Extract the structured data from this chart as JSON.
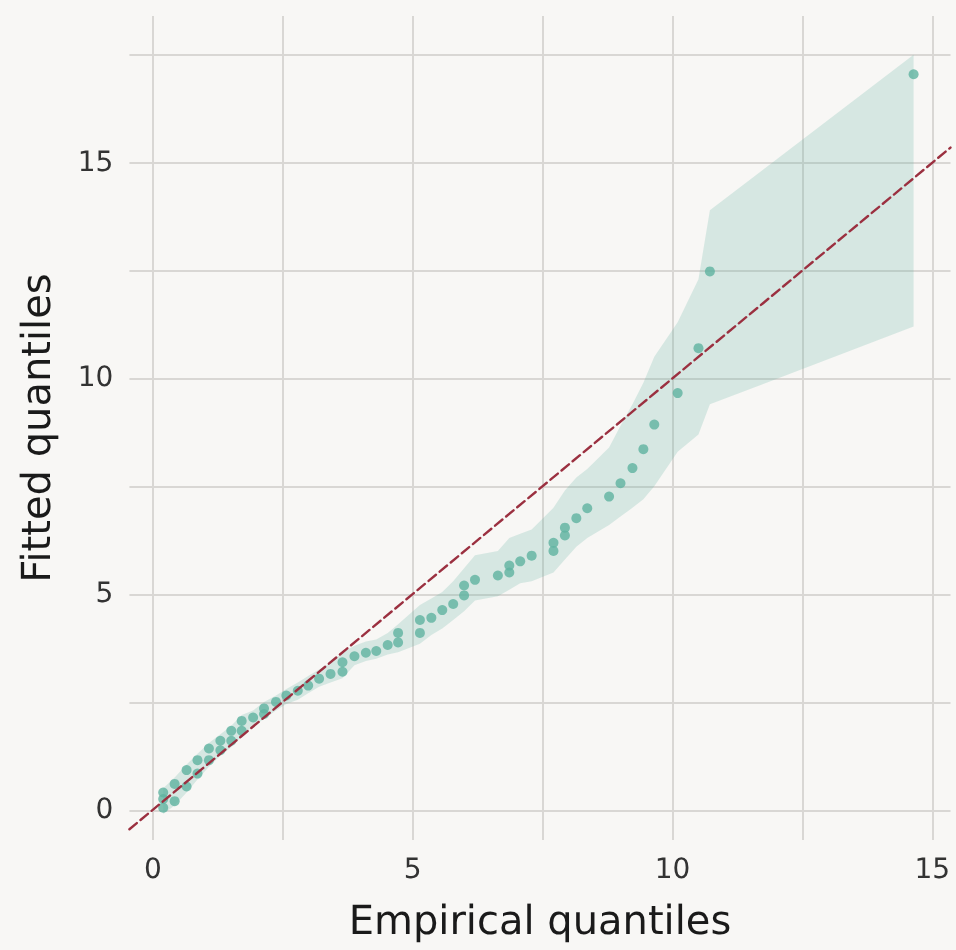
{
  "chart_data": {
    "type": "scatter",
    "xlabel": "Empirical quantiles",
    "ylabel": "Fitted quantiles",
    "xlim": [
      -0.45,
      15.35
    ],
    "ylim": [
      -0.7,
      18.4
    ],
    "xticks": [
      0,
      {
        "value": 2.5,
        "label": null
      },
      5,
      {
        "value": 7.5,
        "label": null
      },
      10,
      {
        "value": 12.5,
        "label": null
      },
      15
    ],
    "yticks": [
      0,
      {
        "value": 2.5,
        "label": null
      },
      5,
      {
        "value": 7.5,
        "label": null
      },
      10,
      {
        "value": 12.5,
        "label": null
      },
      15,
      {
        "value": 17.5,
        "label": null
      }
    ],
    "grid": true,
    "marker": "circle",
    "series": [
      {
        "color": "#5fb3a0",
        "x": [
          0.2,
          0.2,
          0.2,
          0.42,
          0.42,
          0.65,
          0.65,
          0.86,
          0.86,
          1.08,
          1.08,
          1.3,
          1.3,
          1.51,
          1.51,
          1.71,
          1.71,
          1.93,
          2.14,
          2.14,
          2.37,
          2.57,
          2.79,
          2.99,
          3.2,
          3.42,
          3.65,
          3.65,
          3.88,
          4.1,
          4.3,
          4.52,
          4.72,
          4.72,
          5.14,
          5.14,
          5.36,
          5.57,
          5.78,
          5.99,
          5.99,
          6.2,
          6.64,
          6.86,
          6.86,
          7.07,
          7.29,
          7.71,
          7.71,
          7.93,
          7.93,
          8.15,
          8.36,
          8.78,
          9.0,
          9.23,
          9.44,
          9.65,
          10.1,
          10.5,
          10.72,
          14.64
        ],
        "values": [
          0.05,
          0.25,
          0.4,
          0.2,
          0.6,
          0.54,
          0.92,
          0.84,
          1.15,
          1.15,
          1.42,
          1.38,
          1.6,
          1.6,
          1.83,
          1.83,
          2.06,
          2.14,
          2.22,
          2.35,
          2.5,
          2.65,
          2.76,
          2.88,
          3.04,
          3.15,
          3.2,
          3.42,
          3.56,
          3.64,
          3.68,
          3.82,
          3.88,
          4.1,
          4.1,
          4.4,
          4.45,
          4.63,
          4.77,
          4.97,
          5.2,
          5.33,
          5.43,
          5.5,
          5.66,
          5.76,
          5.89,
          6.0,
          6.19,
          6.36,
          6.54,
          6.76,
          6.99,
          7.26,
          7.57,
          7.92,
          8.36,
          8.93,
          9.66,
          10.7,
          12.48,
          17.05
        ],
        "lower": [
          -0.1,
          -0.1,
          -0.1,
          0.1,
          0.1,
          0.4,
          0.4,
          0.7,
          0.7,
          1.0,
          1.0,
          1.25,
          1.25,
          1.45,
          1.45,
          1.7,
          1.7,
          1.95,
          2.1,
          2.1,
          2.3,
          2.45,
          2.55,
          2.7,
          2.85,
          2.95,
          3.05,
          3.05,
          3.35,
          3.45,
          3.5,
          3.6,
          3.65,
          3.65,
          3.85,
          3.85,
          4.05,
          4.2,
          4.4,
          4.6,
          4.6,
          4.85,
          4.95,
          5.1,
          5.1,
          5.25,
          5.3,
          5.5,
          5.5,
          5.8,
          5.8,
          6.1,
          6.3,
          6.6,
          6.8,
          7.0,
          7.2,
          7.5,
          8.3,
          8.7,
          9.4,
          11.2
        ],
        "upper": [
          0.5,
          0.5,
          0.5,
          0.75,
          0.75,
          1.05,
          1.05,
          1.3,
          1.3,
          1.55,
          1.55,
          1.75,
          1.75,
          1.95,
          1.95,
          2.2,
          2.2,
          2.3,
          2.5,
          2.5,
          2.65,
          2.8,
          2.95,
          3.1,
          3.25,
          3.4,
          3.65,
          3.65,
          3.8,
          3.9,
          3.95,
          4.1,
          4.3,
          4.3,
          4.75,
          4.75,
          4.9,
          5.05,
          5.3,
          5.6,
          5.6,
          5.9,
          6.0,
          6.3,
          6.3,
          6.4,
          6.5,
          7.0,
          7.0,
          7.4,
          7.4,
          7.7,
          7.9,
          8.4,
          8.9,
          9.4,
          9.9,
          10.5,
          11.3,
          12.3,
          13.9,
          17.5
        ]
      },
      {
        "type": "line",
        "color": "#9b3040",
        "line_style": "dashed",
        "marker": "none",
        "x": [
          -0.45,
          15.35
        ],
        "values": [
          -0.45,
          15.35
        ]
      }
    ]
  }
}
